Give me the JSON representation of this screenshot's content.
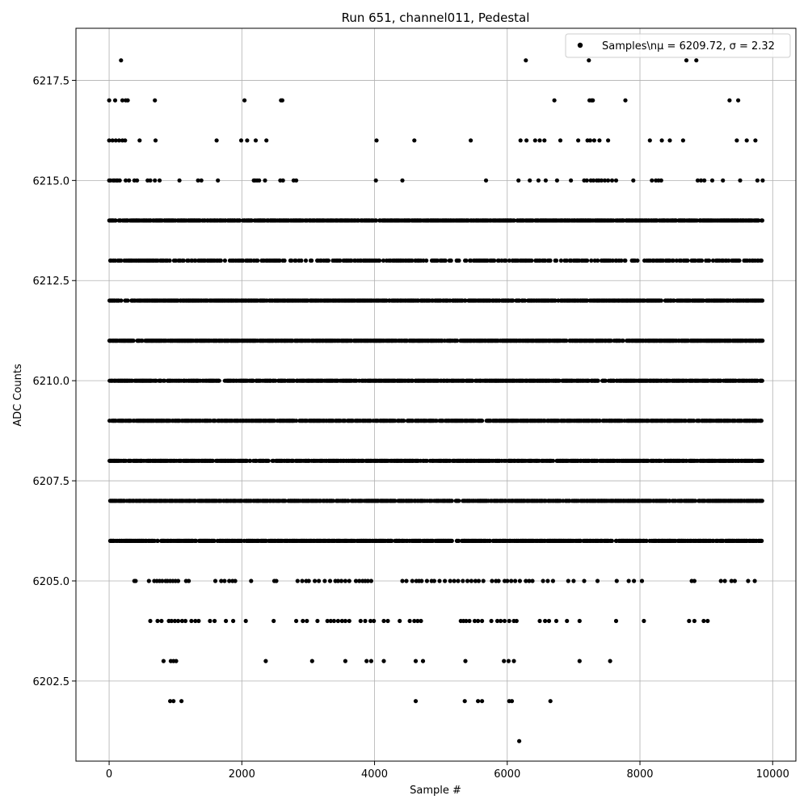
{
  "chart_data": {
    "type": "scatter",
    "title": "Run 651, channel011, Pedestal",
    "xlabel": "Sample #",
    "ylabel": "ADC Counts",
    "xlim": [
      -500,
      10350
    ],
    "ylim": [
      6200.5,
      6218.8
    ],
    "xticks": [
      0,
      2000,
      4000,
      6000,
      8000,
      10000
    ],
    "xtick_labels": [
      "0",
      "2000",
      "4000",
      "6000",
      "8000",
      "10000"
    ],
    "yticks": [
      6202.5,
      6205.0,
      6207.5,
      6210.0,
      6212.5,
      6215.0,
      6217.5
    ],
    "ytick_labels": [
      "6202.5",
      "6205.0",
      "6207.5",
      "6210.0",
      "6212.5",
      "6215.0",
      "6217.5"
    ],
    "grid": true,
    "legend_position": "top-right",
    "series": [
      {
        "name": "Samples\\n$\\mu$ = 6209.72, $\\sigma$ = 2.32",
        "legend_label": "Samples\\nμ = 6209.72, σ = 2.32",
        "marker": "circle",
        "color": "#000000",
        "x_range": [
          0,
          9850
        ],
        "levels": [
          {
            "y": 6218,
            "x": [
              180,
              6280,
              7230,
              8700,
              8850
            ]
          },
          {
            "y": 6217,
            "x": [
              0,
              90,
              200,
              250,
              280,
              690,
              2040,
              2590,
              2610,
              6710,
              7240,
              7270,
              7290,
              7780,
              9350,
              9480
            ]
          },
          {
            "y": 6216,
            "x": [
              0,
              50,
              100,
              150,
              200,
              240,
              460,
              700,
              1620,
              1990,
              2080,
              2210,
              2370,
              4030,
              4600,
              5450,
              6200,
              6290,
              6420,
              6490,
              6560,
              6800,
              7070,
              7210,
              7250,
              7310,
              7390,
              7520,
              8150,
              8330,
              8450,
              8650,
              9460,
              9610,
              9740
            ]
          },
          {
            "y": 6215,
            "x": [
              0,
              20,
              60,
              80,
              110,
              130,
              160,
              250,
              300,
              380,
              420,
              580,
              620,
              690,
              760,
              1060,
              1340,
              1390,
              1640,
              2180,
              2200,
              2230,
              2260,
              2350,
              2580,
              2620,
              2780,
              2820,
              4020,
              4420,
              5680,
              6170,
              6340,
              6470,
              6580,
              6750,
              6960,
              7160,
              7200,
              7260,
              7300,
              7350,
              7380,
              7420,
              7470,
              7520,
              7580,
              7640,
              7900,
              8180,
              8240,
              8280,
              8320,
              8870,
              8920,
              8970,
              9090,
              9250,
              9510,
              9770,
              9850
            ]
          },
          {
            "y": 6214,
            "x": [
              0,
              9850
            ],
            "dense": true
          },
          {
            "y": 6213,
            "x": [
              0,
              9850
            ],
            "dense": true,
            "density": 0.6
          },
          {
            "y": 6212,
            "x": [
              0,
              9850
            ],
            "dense": true
          },
          {
            "y": 6211,
            "x": [
              0,
              9850
            ],
            "dense": true
          },
          {
            "y": 6210,
            "x": [
              0,
              9850
            ],
            "dense": true
          },
          {
            "y": 6209,
            "x": [
              0,
              9850
            ],
            "dense": true
          },
          {
            "y": 6208,
            "x": [
              0,
              9850
            ],
            "dense": true
          },
          {
            "y": 6207,
            "x": [
              0,
              9850
            ],
            "dense": true
          },
          {
            "y": 6206,
            "x": [
              0,
              9850
            ],
            "dense": true
          },
          {
            "y": 6205,
            "x": [
              380,
              400,
              600,
              680,
              720,
              760,
              800,
              850,
              880,
              920,
              960,
              1000,
              1040,
              1160,
              1200,
              1600,
              1690,
              1740,
              1810,
              1860,
              1900,
              2140,
              2490,
              2520,
              2840,
              2910,
              2970,
              3010,
              3100,
              3160,
              3250,
              3330,
              3410,
              3450,
              3500,
              3560,
              3620,
              3720,
              3770,
              3820,
              3860,
              3900,
              3950,
              4420,
              4480,
              4570,
              4630,
              4670,
              4710,
              4790,
              4860,
              4900,
              4980,
              5060,
              5140,
              5200,
              5260,
              5330,
              5400,
              5460,
              5520,
              5570,
              5640,
              5770,
              5830,
              5870,
              5960,
              6000,
              6060,
              6120,
              6190,
              6280,
              6330,
              6380,
              6540,
              6610,
              6690,
              6920,
              7000,
              7160,
              7360,
              7650,
              7830,
              7910,
              8030,
              8780,
              8820,
              9220,
              9280,
              9380,
              9430,
              9630,
              9730
            ]
          },
          {
            "y": 6204,
            "x": [
              620,
              730,
              790,
              900,
              940,
              990,
              1040,
              1100,
              1150,
              1240,
              1300,
              1350,
              1520,
              1590,
              1760,
              1870,
              2060,
              2480,
              2820,
              2920,
              2980,
              3140,
              3290,
              3340,
              3390,
              3450,
              3510,
              3560,
              3620,
              3790,
              3860,
              3940,
              3990,
              4140,
              4200,
              4380,
              4530,
              4600,
              4650,
              4700,
              5300,
              5340,
              5380,
              5430,
              5510,
              5560,
              5620,
              5760,
              5850,
              5900,
              5960,
              6030,
              6100,
              6140,
              6490,
              6570,
              6630,
              6740,
              6900,
              7090,
              7640,
              8060,
              8740,
              8820,
              8960,
              9020
            ]
          },
          {
            "y": 6203,
            "x": [
              820,
              930,
              970,
              1010,
              2360,
              3060,
              3560,
              3880,
              3950,
              4140,
              4620,
              4730,
              5370,
              5950,
              6020,
              6100,
              7090,
              7550
            ]
          },
          {
            "y": 6202,
            "x": [
              920,
              970,
              1090,
              4620,
              5360,
              5560,
              5620,
              6030,
              6070,
              6650
            ]
          },
          {
            "y": 6201,
            "x": [
              6180
            ]
          }
        ]
      }
    ]
  }
}
